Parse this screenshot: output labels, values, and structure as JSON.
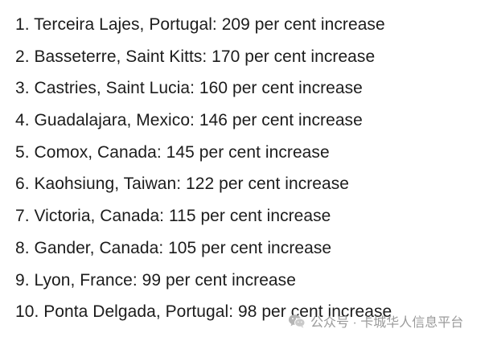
{
  "list": {
    "items": [
      "1. Terceira Lajes, Portugal: 209 per cent increase",
      "2. Basseterre, Saint Kitts: 170 per cent increase",
      "3. Castries, Saint Lucia: 160 per cent increase",
      "4. Guadalajara, Mexico: 146 per cent increase",
      "5. Comox, Canada: 145 per cent increase",
      "6. Kaohsiung, Taiwan: 122 per cent increase",
      "7. Victoria, Canada: 115 per cent increase",
      "8. Gander, Canada: 105 per cent increase",
      "9. Lyon, France: 99 per cent increase",
      "10. Ponta Delgada, Portugal: 98 per cent increase"
    ]
  },
  "watermark": {
    "text": "公众号 · 卡城华人信息平台",
    "icon": "wechat-icon"
  },
  "colors": {
    "text": "#1c1c1c",
    "watermark": "#9a9a9a"
  }
}
